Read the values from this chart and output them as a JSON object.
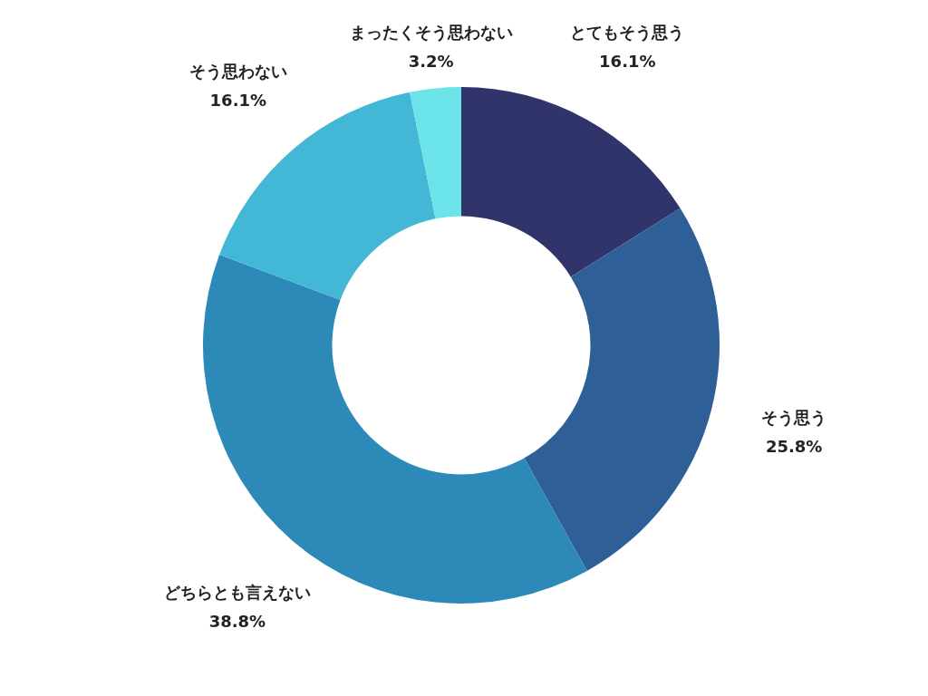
{
  "chart_data": {
    "type": "donut",
    "categories": [
      "とてもそう思う",
      "そう思う",
      "どちらとも言えない",
      "そう思わない",
      "まったくそう思わない"
    ],
    "values": [
      16.1,
      25.8,
      38.8,
      16.1,
      3.2
    ],
    "colors": [
      "#31336b",
      "#2e5f96",
      "#2d8ab8",
      "#42b7d6",
      "#6ae4e8"
    ],
    "value_labels": [
      "16.1%",
      "25.8%",
      "38.8%",
      "16.1%",
      "3.2%"
    ]
  }
}
